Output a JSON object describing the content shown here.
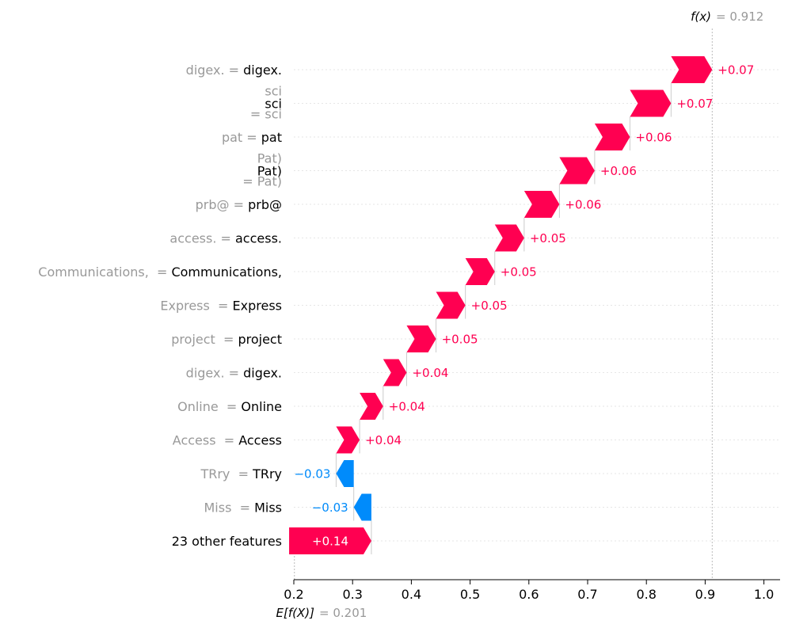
{
  "chart_data": {
    "type": "waterfall",
    "fx_label": "f(x)",
    "fx_value": 0.912,
    "base_label": "E[f(X)]",
    "base_value": 0.201,
    "xlim": [
      0.2,
      1.03
    ],
    "x_ticks": [
      "0.2",
      "0.3",
      "0.4",
      "0.5",
      "0.6",
      "0.7",
      "0.8",
      "0.9",
      "1.0"
    ],
    "colors": {
      "positive": "#ff0051",
      "negative": "#008bfb"
    },
    "rows": [
      {
        "name": "digex.",
        "value_text": "digex.",
        "contribution": 0.07,
        "label": "+0.07",
        "layout": "inline"
      },
      {
        "name": "sci",
        "value_text": "sci",
        "contribution": 0.07,
        "label": "+0.07",
        "layout": "split"
      },
      {
        "name": "pat",
        "value_text": "pat",
        "contribution": 0.06,
        "label": "+0.06",
        "layout": "inline"
      },
      {
        "name": "Pat)",
        "value_text": "Pat)",
        "contribution": 0.06,
        "label": "+0.06",
        "layout": "split"
      },
      {
        "name": "prb@",
        "value_text": "prb@",
        "contribution": 0.06,
        "label": "+0.06",
        "layout": "inline"
      },
      {
        "name": "access.",
        "value_text": "access.",
        "contribution": 0.05,
        "label": "+0.05",
        "layout": "inline"
      },
      {
        "name": "Communications, ",
        "value_text": "Communications,",
        "contribution": 0.05,
        "label": "+0.05",
        "layout": "inline"
      },
      {
        "name": "Express ",
        "value_text": "Express",
        "contribution": 0.05,
        "label": "+0.05",
        "layout": "inline"
      },
      {
        "name": "project ",
        "value_text": "project",
        "contribution": 0.05,
        "label": "+0.05",
        "layout": "inline"
      },
      {
        "name": "digex.",
        "value_text": "digex.",
        "contribution": 0.04,
        "label": "+0.04",
        "layout": "inline"
      },
      {
        "name": "Online ",
        "value_text": "Online",
        "contribution": 0.04,
        "label": "+0.04",
        "layout": "inline"
      },
      {
        "name": "Access ",
        "value_text": "Access",
        "contribution": 0.04,
        "label": "+0.04",
        "layout": "inline"
      },
      {
        "name": "TRry ",
        "value_text": "TRry",
        "contribution": -0.03,
        "label": "−0.03",
        "layout": "inline"
      },
      {
        "name": "Miss ",
        "value_text": "Miss",
        "contribution": -0.03,
        "label": "−0.03",
        "layout": "inline"
      },
      {
        "name": "",
        "value_text": "23 other features",
        "contribution": 0.14,
        "label": "+0.14",
        "layout": "plain"
      }
    ]
  }
}
